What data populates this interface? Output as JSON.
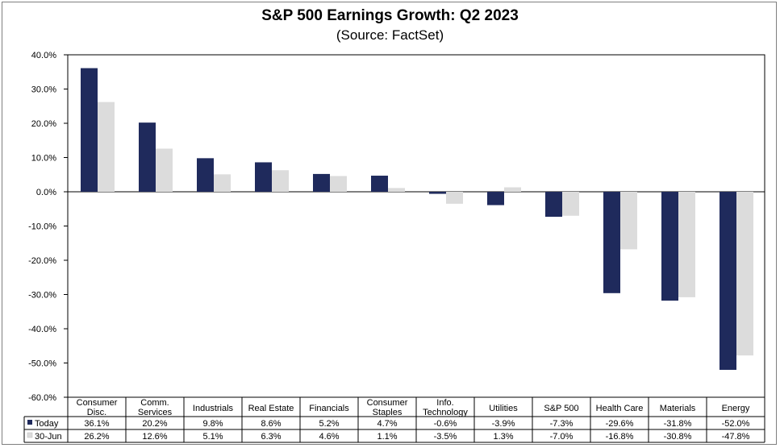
{
  "chart_data": {
    "type": "bar",
    "title": "S&P 500 Earnings Growth: Q2 2023",
    "subtitle": "(Source: FactSet)",
    "ylim": [
      -60,
      40
    ],
    "yticks": [
      "40.0%",
      "30.0%",
      "20.0%",
      "10.0%",
      "0.0%",
      "-10.0%",
      "-20.0%",
      "-30.0%",
      "-40.0%",
      "-50.0%",
      "-60.0%"
    ],
    "ytick_values": [
      40,
      30,
      20,
      10,
      0,
      -10,
      -20,
      -30,
      -40,
      -50,
      -60
    ],
    "categories": [
      [
        "Consumer",
        "Disc."
      ],
      [
        "Comm.",
        "Services"
      ],
      [
        "Industrials"
      ],
      [
        "Real Estate"
      ],
      [
        "Financials"
      ],
      [
        "Consumer",
        "Staples"
      ],
      [
        "Info.",
        "Technology"
      ],
      [
        "Utilities"
      ],
      [
        "S&P 500"
      ],
      [
        "Health Care"
      ],
      [
        "Materials"
      ],
      [
        "Energy"
      ]
    ],
    "series": [
      {
        "name": "Today",
        "color": "#1f2a5c",
        "values": [
          36.1,
          20.2,
          9.8,
          8.6,
          5.2,
          4.7,
          -0.6,
          -3.9,
          -7.3,
          -29.6,
          -31.8,
          -52.0
        ],
        "labels": [
          "36.1%",
          "20.2%",
          "9.8%",
          "8.6%",
          "5.2%",
          "4.7%",
          "-0.6%",
          "-3.9%",
          "-7.3%",
          "-29.6%",
          "-31.8%",
          "-52.0%"
        ]
      },
      {
        "name": "30-Jun",
        "color": "#dcdcdc",
        "values": [
          26.2,
          12.6,
          5.1,
          6.3,
          4.6,
          1.1,
          -3.5,
          1.3,
          -7.0,
          -16.8,
          -30.8,
          -47.8
        ],
        "labels": [
          "26.2%",
          "12.6%",
          "5.1%",
          "6.3%",
          "4.6%",
          "1.1%",
          "-3.5%",
          "1.3%",
          "-7.0%",
          "-16.8%",
          "-30.8%",
          "-47.8%"
        ]
      }
    ],
    "grid": false,
    "legend": "data-table"
  }
}
